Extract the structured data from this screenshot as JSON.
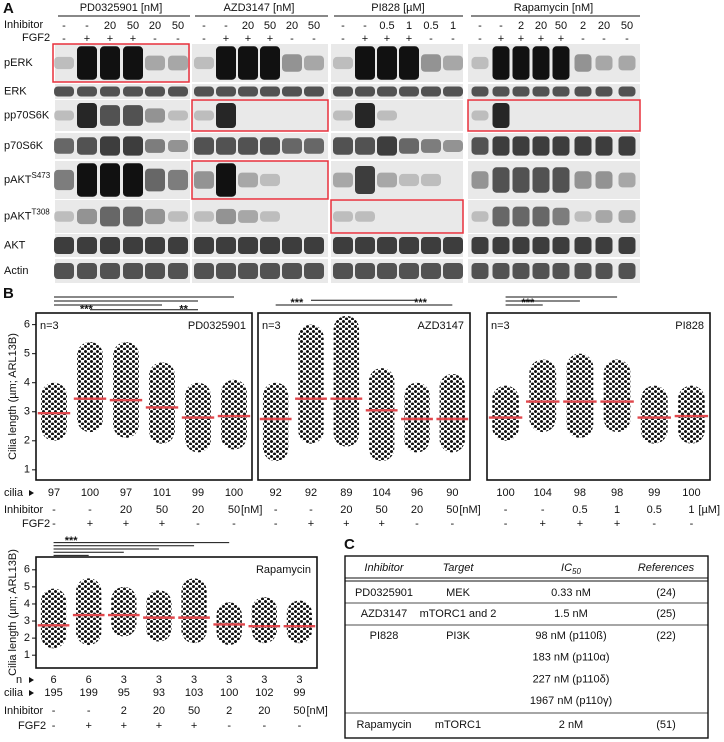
{
  "panel_a": {
    "label": "A",
    "row_labels": {
      "inhibitor": "Inhibitor",
      "fgf2": "FGF2"
    },
    "groups": [
      {
        "title": "PD0325901 [nM]",
        "inhibitor": [
          "-",
          "-",
          "20",
          "50",
          "20",
          "50"
        ],
        "fgf2": [
          "-",
          "+",
          "+",
          "+",
          "-",
          "-"
        ]
      },
      {
        "title": "AZD3147 [nM]",
        "inhibitor": [
          "-",
          "-",
          "20",
          "50",
          "20",
          "50"
        ],
        "fgf2": [
          "-",
          "+",
          "+",
          "+",
          "-",
          "-"
        ]
      },
      {
        "title": "PI828 [µM]",
        "inhibitor": [
          "-",
          "-",
          "0.5",
          "1",
          "0.5",
          "1"
        ],
        "fgf2": [
          "-",
          "+",
          "+",
          "+",
          "-",
          "-"
        ]
      },
      {
        "title": "Rapamycin [nM]",
        "inhibitor": [
          "-",
          "-",
          "2",
          "20",
          "50",
          "2",
          "20",
          "50"
        ],
        "fgf2": [
          "-",
          "+",
          "+",
          "+",
          "+",
          "-",
          "-",
          "-"
        ]
      }
    ],
    "blots": [
      {
        "name": "pERK"
      },
      {
        "name": "ERK"
      },
      {
        "name": "pp70S6K"
      },
      {
        "name": "p70S6K"
      },
      {
        "name": "pAKT",
        "superscript": "S473"
      },
      {
        "name": "pAKT",
        "superscript": "T308"
      },
      {
        "name": "AKT"
      },
      {
        "name": "Actin"
      }
    ]
  },
  "panel_b": {
    "label": "B"
  },
  "chart_data": [
    {
      "type": "strip",
      "title": "PD0325901",
      "n_label": "n=3",
      "ylabel": "Cilia length (µm; ARL13B)",
      "ylim": [
        0.65,
        6.4
      ],
      "yticks": [
        1,
        2,
        3,
        4,
        5,
        6
      ],
      "significance": [
        "***",
        "**"
      ],
      "row_labels": {
        "cilia": "cilia",
        "inhibitor": "Inhibitor",
        "fgf2": "FGF2"
      },
      "cilia": [
        97,
        100,
        97,
        101,
        99,
        100
      ],
      "inhibitor": [
        "-",
        "-",
        "20",
        "50",
        "20",
        "50"
      ],
      "fgf2": [
        "-",
        "+",
        "+",
        "+",
        "-",
        "-"
      ],
      "unit": "[nM]",
      "mean": [
        2.95,
        3.45,
        3.4,
        3.15,
        2.8,
        2.85
      ],
      "min": [
        2.0,
        2.3,
        2.1,
        1.9,
        1.6,
        1.7
      ],
      "max": [
        4.0,
        5.4,
        5.4,
        4.7,
        4.0,
        4.1
      ],
      "mean_color": "#e0474c",
      "dot_color": "#111111"
    },
    {
      "type": "strip",
      "title": "AZD3147",
      "n_label": "n=3",
      "ylim": [
        0.65,
        6.4
      ],
      "significance": [
        "***",
        "***"
      ],
      "cilia": [
        92,
        92,
        89,
        104,
        96,
        90
      ],
      "inhibitor": [
        "-",
        "-",
        "20",
        "50",
        "20",
        "50"
      ],
      "fgf2": [
        "-",
        "+",
        "+",
        "+",
        "-",
        "-"
      ],
      "unit": "[nM]",
      "mean": [
        2.75,
        3.45,
        3.45,
        3.05,
        2.75,
        2.75
      ],
      "min": [
        1.3,
        1.9,
        1.8,
        1.3,
        1.6,
        1.6
      ],
      "max": [
        4.0,
        6.0,
        6.3,
        4.5,
        4.0,
        4.3
      ],
      "mean_color": "#e0474c",
      "dot_color": "#111111"
    },
    {
      "type": "strip",
      "title": "PI828",
      "n_label": "n=3",
      "ylim": [
        0.65,
        6.4
      ],
      "significance": [
        "***"
      ],
      "cilia": [
        100,
        104,
        98,
        98,
        99,
        100
      ],
      "inhibitor": [
        "-",
        "-",
        "0.5",
        "1",
        "0.5",
        "1"
      ],
      "fgf2": [
        "-",
        "+",
        "+",
        "+",
        "-",
        "-"
      ],
      "unit": "[µM]",
      "mean": [
        2.8,
        3.35,
        3.35,
        3.35,
        2.8,
        2.85
      ],
      "min": [
        2.0,
        2.3,
        2.1,
        2.3,
        1.9,
        1.9
      ],
      "max": [
        3.9,
        4.8,
        5.0,
        4.8,
        3.9,
        3.9
      ],
      "mean_color": "#e0474c",
      "dot_color": "#111111"
    },
    {
      "type": "strip",
      "title": "Rapamycin",
      "ylabel": "Cilia length (µm; ARL13B)",
      "ylim": [
        0.25,
        6.75
      ],
      "yticks": [
        1,
        2,
        3,
        4,
        5,
        6
      ],
      "significance": [
        "***"
      ],
      "row_labels": {
        "n": "n",
        "cilia": "cilia",
        "inhibitor": "Inhibitor",
        "fgf2": "FGF2"
      },
      "n": [
        6,
        6,
        3,
        3,
        3,
        3,
        3,
        3
      ],
      "cilia": [
        195,
        199,
        95,
        93,
        103,
        100,
        102,
        99
      ],
      "inhibitor": [
        "-",
        "-",
        "2",
        "20",
        "50",
        "2",
        "20",
        "50"
      ],
      "fgf2": [
        "-",
        "+",
        "+",
        "+",
        "+",
        "-",
        "-",
        "-"
      ],
      "unit": "[nM]",
      "mean": [
        2.75,
        3.35,
        3.35,
        3.2,
        3.2,
        2.8,
        2.7,
        2.7
      ],
      "min": [
        1.4,
        1.6,
        2.1,
        1.8,
        1.7,
        1.6,
        1.7,
        1.7
      ],
      "max": [
        4.9,
        5.5,
        5.0,
        4.8,
        5.5,
        4.1,
        4.4,
        4.2
      ],
      "mean_color": "#e0474c",
      "dot_color": "#111111"
    }
  ],
  "panel_c": {
    "label": "C",
    "header": [
      {
        "text": "Inhibitor"
      },
      {
        "text": "Target"
      },
      {
        "text": "IC",
        "subscript": "50"
      },
      {
        "text": "References"
      }
    ],
    "rows": [
      {
        "inhibitor": "PD0325901",
        "target": "MEK",
        "ic50": [
          "0.33 nM"
        ],
        "reference": "(24)"
      },
      {
        "inhibitor": "AZD3147",
        "target": "mTORC1 and 2",
        "ic50": [
          "1.5 nM"
        ],
        "reference": "(25)"
      },
      {
        "inhibitor": "PI828",
        "target": "PI3K",
        "ic50": [
          "98 nM (p110ß)",
          "183 nM (p110α)",
          "227 nM (p110δ)",
          "1967 nM (p110γ)"
        ],
        "reference": "(22)"
      },
      {
        "inhibitor": "Rapamycin",
        "target": "mTORC1",
        "ic50": [
          "2 nM"
        ],
        "reference": "(51)"
      }
    ]
  }
}
